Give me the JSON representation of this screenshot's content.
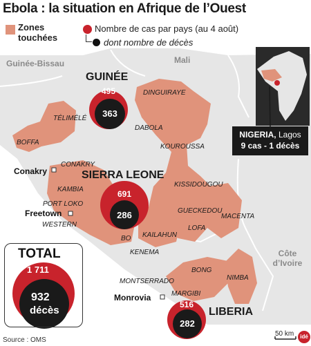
{
  "title": "Ebola : la situation en Afrique de l’Ouest",
  "legend": {
    "zones_label": "Zones touchées",
    "cases_label": "Nombre de cas par pays (au 4 août)",
    "deaths_label": "dont nombre de décès"
  },
  "colors": {
    "affected_zone": "#e0937b",
    "cases": "#c8232c",
    "deaths": "#111111",
    "land": "#e6e6e6",
    "ocean": "#ffffff"
  },
  "countries": [
    {
      "name": "GUINÉE",
      "cases": "495",
      "deaths": "363"
    },
    {
      "name": "SIERRA LEONE",
      "cases": "691",
      "deaths": "286"
    },
    {
      "name": "LIBERIA",
      "cases": "516",
      "deaths": "282"
    }
  ],
  "neighbors": {
    "guinea_bissau": "Guinée-Bissau",
    "mali": "Mali",
    "cote_ivoire": "Côte d’Ivoire"
  },
  "regions": {
    "telimele": "TÉLIMÉLÉ",
    "boffa": "BOFFA",
    "conakry": "CONAKRY",
    "dinguiraye": "DINGUIRAYE",
    "dabola": "DABOLA",
    "kouroussa": "KOUROUSSA",
    "kissidougou": "KISSIDOUGOU",
    "gueckedou": "GUECKEDOU",
    "macenta": "MACENTA",
    "lofa": "LOFA",
    "kambia": "KAMBIA",
    "port_loko": "PORT LOKO",
    "western": "WESTERN",
    "bo": "BO",
    "kailahun": "KAILAHUN",
    "kenema": "KENEMA",
    "montserrado": "MONTSERRADO",
    "margibi": "MARGIBI",
    "bong": "BONG",
    "nimba": "NIMBA"
  },
  "cities": {
    "conakry": "Conakry",
    "freetown": "Freetown",
    "monrovia": "Monrovia"
  },
  "nigeria": {
    "name": "NIGERIA,",
    "city": "Lagos",
    "detail": "9 cas - 1 décès"
  },
  "total": {
    "label": "TOTAL",
    "cases": "1 711",
    "deaths": "932",
    "deaths_unit": "décès"
  },
  "source": "Source : OMS",
  "scale": "50 km",
  "logo": "idé"
}
